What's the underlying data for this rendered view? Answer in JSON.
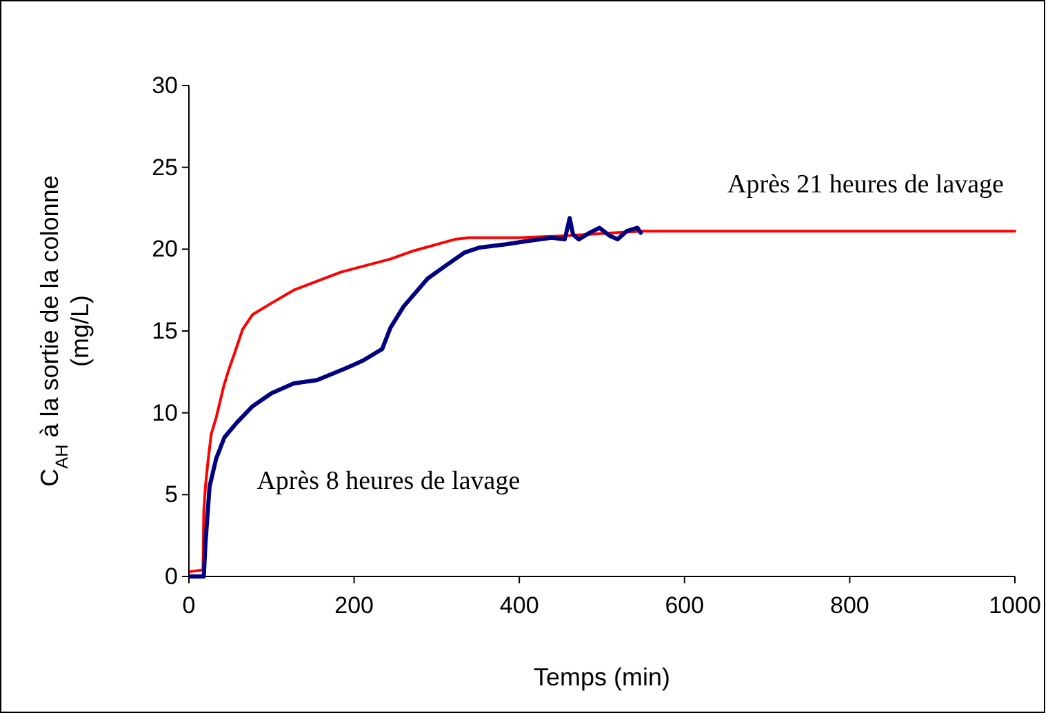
{
  "chart_data": {
    "type": "line",
    "xlabel": "Temps (min)",
    "ylabel": "C$_{AH}$ à la sortie de la colonne (mg/L)",
    "xlim": [
      0,
      1000
    ],
    "xticks": [
      0,
      200,
      400,
      600,
      800,
      1000
    ],
    "ylim": [
      0,
      30
    ],
    "yticks": [
      0,
      5,
      10,
      15,
      20,
      25,
      30
    ],
    "grid": false,
    "legend": false,
    "marker": "none",
    "line_style": "solid",
    "series": [
      {
        "name": "Après 21 heures de lavage",
        "color": "#ff0000",
        "x": [
          2,
          17,
          18,
          20,
          23,
          27,
          33,
          42,
          48,
          55,
          65,
          77,
          100,
          127,
          184,
          244,
          272,
          322,
          339,
          400,
          450,
          548,
          1000
        ],
        "values": [
          0.3,
          0.4,
          4,
          5.5,
          7,
          8.7,
          9.7,
          11.6,
          12.6,
          13.6,
          15.1,
          16,
          16.7,
          17.5,
          18.6,
          19.4,
          19.9,
          20.6,
          20.7,
          20.7,
          20.8,
          21.1,
          21.1
        ]
      },
      {
        "name": "Après 8 heures de lavage",
        "color": "#000080",
        "x": [
          2,
          18,
          20,
          25,
          33,
          43,
          58,
          77,
          100,
          127,
          155,
          189,
          211,
          234,
          244,
          260,
          289,
          311,
          334,
          352,
          384,
          410,
          439,
          455,
          461,
          465,
          472,
          485,
          497,
          510,
          519,
          530,
          543,
          547
        ],
        "values": [
          0,
          0,
          2,
          5.5,
          7.2,
          8.5,
          9.4,
          10.4,
          11.2,
          11.8,
          12,
          12.7,
          13.2,
          13.9,
          15.2,
          16.5,
          18.2,
          19,
          19.8,
          20.1,
          20.3,
          20.5,
          20.7,
          20.6,
          21.9,
          20.9,
          20.6,
          21,
          21.3,
          20.8,
          20.6,
          21.1,
          21.3,
          21
        ]
      }
    ]
  }
}
